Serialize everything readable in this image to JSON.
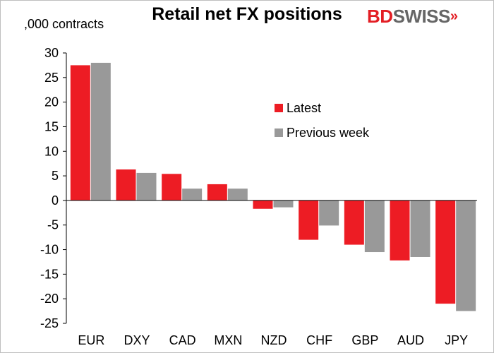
{
  "chart_data": {
    "type": "bar",
    "title": "Retail net FX positions",
    "ylabel": ",000 contracts",
    "xlabel": "",
    "ylim": [
      -25,
      30
    ],
    "yticks": [
      30,
      25,
      20,
      15,
      10,
      5,
      0,
      -5,
      -10,
      -15,
      -20,
      -25
    ],
    "grid": false,
    "legend_position": "center-right",
    "categories": [
      "EUR",
      "DXY",
      "CAD",
      "MXN",
      "NZD",
      "CHF",
      "GBP",
      "AUD",
      "JPY"
    ],
    "series": [
      {
        "name": "Latest",
        "color": "#ed1c24",
        "values": [
          27.5,
          6.3,
          5.4,
          3.3,
          -1.7,
          -8.0,
          -9.0,
          -12.2,
          -21.0
        ]
      },
      {
        "name": "Previous week",
        "color": "#999999",
        "values": [
          28.0,
          5.6,
          2.4,
          2.4,
          -1.4,
          -5.1,
          -10.5,
          -11.5,
          -22.5
        ]
      }
    ]
  },
  "branding": {
    "logo_part1": "BD",
    "logo_part2": "SWISS",
    "logo_mark": "»"
  }
}
